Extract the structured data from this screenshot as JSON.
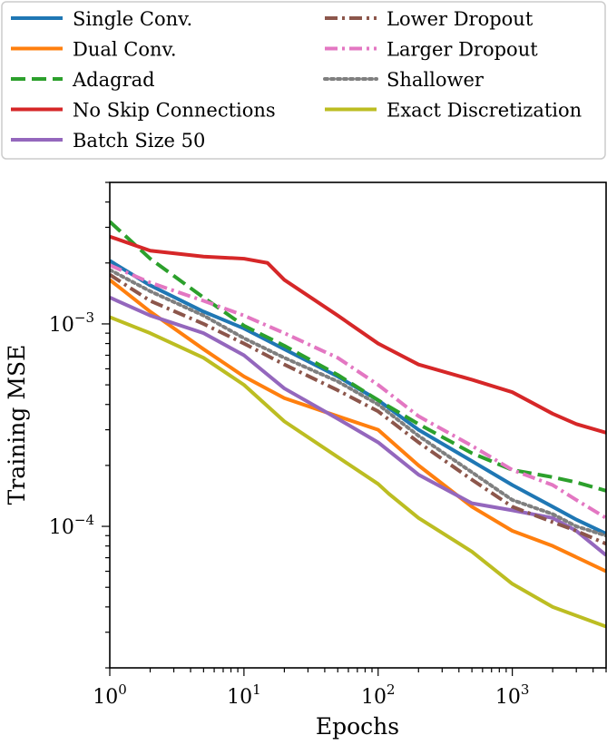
{
  "chart_data": {
    "type": "line",
    "title": "",
    "xlabel": "Epochs",
    "ylabel": "Training MSE",
    "xscale": "log",
    "yscale": "log",
    "xlim": [
      1,
      5000
    ],
    "ylim": [
      2e-05,
      0.005
    ],
    "grid": false,
    "legend_position": "top",
    "x_ticks": [
      {
        "base": "10",
        "exp": "0",
        "value": 1
      },
      {
        "base": "10",
        "exp": "1",
        "value": 10
      },
      {
        "base": "10",
        "exp": "2",
        "value": 100
      },
      {
        "base": "10",
        "exp": "3",
        "value": 1000
      }
    ],
    "y_ticks": [
      {
        "base": "10",
        "exp": "−3",
        "value": 0.001
      },
      {
        "base": "10",
        "exp": "−4",
        "value": 0.0001
      }
    ],
    "series": [
      {
        "name": "Single Conv.",
        "color": "#1f77b4",
        "style": "solid",
        "points": [
          [
            1,
            0.00205
          ],
          [
            2,
            0.00155
          ],
          [
            5,
            0.00115
          ],
          [
            10,
            0.00095
          ],
          [
            20,
            0.00075
          ],
          [
            50,
            0.00055
          ],
          [
            100,
            0.00042
          ],
          [
            200,
            0.0003
          ],
          [
            500,
            0.00021
          ],
          [
            1000,
            0.00016
          ],
          [
            2000,
            0.000125
          ],
          [
            3000,
            0.000108
          ],
          [
            5000,
            9.2e-05
          ]
        ]
      },
      {
        "name": "Dual Conv.",
        "color": "#ff7f0e",
        "style": "solid",
        "points": [
          [
            1,
            0.00165
          ],
          [
            2,
            0.00115
          ],
          [
            5,
            0.00075
          ],
          [
            10,
            0.00055
          ],
          [
            20,
            0.00043
          ],
          [
            50,
            0.00035
          ],
          [
            100,
            0.0003
          ],
          [
            200,
            0.0002
          ],
          [
            500,
            0.000125
          ],
          [
            1000,
            9.5e-05
          ],
          [
            2000,
            8e-05
          ],
          [
            5000,
            6e-05
          ]
        ]
      },
      {
        "name": "Adagrad",
        "color": "#2ca02c",
        "style": "dashed",
        "points": [
          [
            1,
            0.0032
          ],
          [
            2,
            0.0021
          ],
          [
            5,
            0.00135
          ],
          [
            10,
            0.00098
          ],
          [
            20,
            0.00078
          ],
          [
            50,
            0.00056
          ],
          [
            100,
            0.00042
          ],
          [
            200,
            0.00032
          ],
          [
            500,
            0.00023
          ],
          [
            1000,
            0.00019
          ],
          [
            2000,
            0.000175
          ],
          [
            3000,
            0.000165
          ],
          [
            5000,
            0.00015
          ]
        ]
      },
      {
        "name": "No Skip Connections",
        "color": "#d62728",
        "style": "solid",
        "points": [
          [
            1,
            0.0027
          ],
          [
            2,
            0.0023
          ],
          [
            5,
            0.00215
          ],
          [
            10,
            0.0021
          ],
          [
            15,
            0.002
          ],
          [
            20,
            0.00165
          ],
          [
            50,
            0.0011
          ],
          [
            100,
            0.0008
          ],
          [
            200,
            0.00063
          ],
          [
            500,
            0.00053
          ],
          [
            1000,
            0.00046
          ],
          [
            2000,
            0.00036
          ],
          [
            3000,
            0.00032
          ],
          [
            5000,
            0.00029
          ]
        ]
      },
      {
        "name": "Batch Size 50",
        "color": "#9467bd",
        "style": "solid",
        "points": [
          [
            1,
            0.00135
          ],
          [
            2,
            0.0011
          ],
          [
            5,
            0.0009
          ],
          [
            10,
            0.0007
          ],
          [
            20,
            0.00048
          ],
          [
            50,
            0.00034
          ],
          [
            100,
            0.00026
          ],
          [
            200,
            0.00018
          ],
          [
            500,
            0.00013
          ],
          [
            1000,
            0.00012
          ],
          [
            2000,
            0.00011
          ],
          [
            3000,
            9.5e-05
          ],
          [
            5000,
            7.2e-05
          ]
        ]
      },
      {
        "name": "Lower Dropout",
        "color": "#8c564b",
        "style": "dashdot",
        "points": [
          [
            1,
            0.00175
          ],
          [
            2,
            0.0013
          ],
          [
            5,
            0.001
          ],
          [
            10,
            0.0008
          ],
          [
            20,
            0.00063
          ],
          [
            50,
            0.00047
          ],
          [
            100,
            0.00037
          ],
          [
            200,
            0.00026
          ],
          [
            500,
            0.00017
          ],
          [
            1000,
            0.000125
          ],
          [
            2000,
            0.000105
          ],
          [
            3000,
            9.5e-05
          ],
          [
            5000,
            8.2e-05
          ]
        ]
      },
      {
        "name": "Larger Dropout",
        "color": "#e377c2",
        "style": "dashdot",
        "points": [
          [
            1,
            0.00195
          ],
          [
            2,
            0.0016
          ],
          [
            5,
            0.0013
          ],
          [
            10,
            0.0011
          ],
          [
            20,
            0.0009
          ],
          [
            50,
            0.00068
          ],
          [
            100,
            0.0005
          ],
          [
            200,
            0.00035
          ],
          [
            500,
            0.00025
          ],
          [
            1000,
            0.00019
          ],
          [
            2000,
            0.00016
          ],
          [
            3000,
            0.000135
          ],
          [
            5000,
            0.00011
          ]
        ]
      },
      {
        "name": "Shallower",
        "color": "#7f7f7f",
        "style": "dotted",
        "points": [
          [
            1,
            0.00185
          ],
          [
            2,
            0.00145
          ],
          [
            5,
            0.0011
          ],
          [
            10,
            0.00085
          ],
          [
            20,
            0.00068
          ],
          [
            50,
            0.00052
          ],
          [
            100,
            0.0004
          ],
          [
            200,
            0.00028
          ],
          [
            500,
            0.000185
          ],
          [
            1000,
            0.000135
          ],
          [
            2000,
            0.000115
          ],
          [
            3000,
            0.0001
          ],
          [
            5000,
            9e-05
          ]
        ]
      },
      {
        "name": "Exact Discretization",
        "color": "#bcbd22",
        "style": "solid",
        "points": [
          [
            1,
            0.00108
          ],
          [
            2,
            0.0009
          ],
          [
            5,
            0.00068
          ],
          [
            10,
            0.0005
          ],
          [
            20,
            0.00033
          ],
          [
            50,
            0.00022
          ],
          [
            100,
            0.000162
          ],
          [
            120,
            0.000145
          ],
          [
            200,
            0.00011
          ],
          [
            500,
            7.5e-05
          ],
          [
            1000,
            5.2e-05
          ],
          [
            2000,
            4e-05
          ],
          [
            5000,
            3.2e-05
          ]
        ]
      }
    ]
  }
}
